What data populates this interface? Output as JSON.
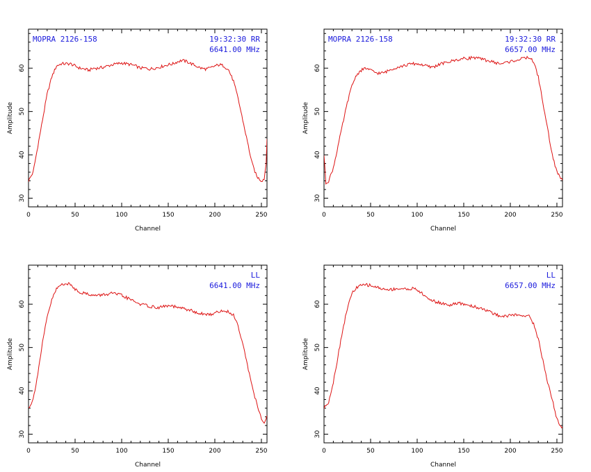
{
  "line_color": "#dd1111",
  "annotation_color": "#1a1adc",
  "chart_data": [
    {
      "type": "line",
      "position": "top-left",
      "xlabel": "Channel",
      "ylabel": "Amplitude",
      "xlim": [
        0,
        256
      ],
      "ylim": [
        28,
        69
      ],
      "xticks": [
        0,
        50,
        100,
        150,
        200,
        250
      ],
      "yticks": [
        30,
        40,
        50,
        60
      ],
      "source": "MOPRA 2126-158",
      "time_pol": "19:32:30 RR",
      "freq": "6641.00 MHz",
      "series": [
        {
          "x": [
            0,
            5,
            10,
            15,
            20,
            25,
            30,
            35,
            40,
            45,
            50,
            55,
            60,
            65,
            70,
            75,
            80,
            85,
            90,
            95,
            100,
            105,
            110,
            115,
            120,
            125,
            130,
            135,
            140,
            145,
            150,
            155,
            160,
            165,
            170,
            175,
            180,
            185,
            190,
            195,
            200,
            205,
            210,
            215,
            220,
            225,
            230,
            235,
            240,
            245,
            250,
            253,
            255,
            256
          ],
          "y": [
            34,
            36,
            42,
            48,
            54,
            58,
            60.5,
            61,
            61,
            61,
            60.5,
            60,
            59.8,
            59.5,
            60,
            60,
            60.2,
            60.5,
            60.8,
            61,
            61.2,
            61,
            60.8,
            60.5,
            60,
            60,
            59.8,
            60,
            60.2,
            60.5,
            60.8,
            61,
            61.5,
            61.8,
            61.5,
            61,
            60.5,
            60,
            59.8,
            60,
            60.5,
            60.8,
            60.5,
            59.5,
            57,
            53,
            48,
            43,
            38,
            35,
            34,
            34.5,
            38,
            44
          ]
        }
      ]
    },
    {
      "type": "line",
      "position": "top-right",
      "xlabel": "Channel",
      "ylabel": "Amplitude",
      "xlim": [
        0,
        256
      ],
      "ylim": [
        28,
        69
      ],
      "xticks": [
        0,
        50,
        100,
        150,
        200,
        250
      ],
      "yticks": [
        30,
        40,
        50,
        60
      ],
      "source": "MOPRA 2126-158",
      "time_pol": "19:32:30 RR",
      "freq": "6657.00 MHz",
      "series": [
        {
          "x": [
            0,
            2,
            5,
            10,
            15,
            20,
            25,
            30,
            35,
            40,
            45,
            50,
            55,
            60,
            65,
            70,
            75,
            80,
            85,
            90,
            95,
            100,
            105,
            110,
            115,
            120,
            125,
            130,
            135,
            140,
            145,
            150,
            155,
            160,
            165,
            170,
            175,
            180,
            185,
            190,
            195,
            200,
            205,
            210,
            215,
            220,
            225,
            230,
            235,
            240,
            245,
            250,
            253,
            256
          ],
          "y": [
            40,
            33.5,
            34,
            37,
            42,
            47,
            52,
            56,
            58.5,
            59.5,
            60,
            59.5,
            59,
            58.8,
            59,
            59.5,
            60,
            60.3,
            60.5,
            60.8,
            61,
            61,
            60.8,
            60.5,
            60.2,
            60.5,
            61,
            61.2,
            61.5,
            61.8,
            62,
            62.2,
            62.3,
            62.5,
            62.3,
            62,
            61.8,
            61.5,
            61.2,
            61,
            61.3,
            61.5,
            61.8,
            62,
            62.3,
            62.5,
            61.5,
            58,
            52,
            46,
            40,
            36,
            35,
            34
          ]
        }
      ]
    },
    {
      "type": "line",
      "position": "bottom-left",
      "xlabel": "Channel",
      "ylabel": "Amplitude",
      "xlim": [
        0,
        256
      ],
      "ylim": [
        28,
        69
      ],
      "xticks": [
        0,
        50,
        100,
        150,
        200,
        250
      ],
      "yticks": [
        30,
        40,
        50,
        60
      ],
      "pol": "LL",
      "freq": "6641.00 MHz",
      "series": [
        {
          "x": [
            0,
            5,
            10,
            15,
            20,
            25,
            30,
            35,
            40,
            45,
            50,
            55,
            60,
            65,
            70,
            75,
            80,
            85,
            90,
            95,
            100,
            105,
            110,
            115,
            120,
            125,
            130,
            135,
            140,
            145,
            150,
            155,
            160,
            165,
            170,
            175,
            180,
            185,
            190,
            195,
            200,
            205,
            210,
            215,
            220,
            225,
            230,
            235,
            240,
            245,
            250,
            253,
            256
          ],
          "y": [
            36,
            38,
            44,
            51,
            57,
            61,
            63.5,
            64.5,
            64.8,
            64.5,
            63.5,
            62.8,
            62.5,
            62.3,
            62,
            62,
            62.2,
            62.3,
            62.5,
            62.3,
            62,
            61.5,
            61,
            60.5,
            60,
            59.8,
            59.5,
            59.3,
            59.2,
            59.5,
            59.6,
            59.5,
            59.2,
            59,
            58.8,
            58.5,
            58,
            57.8,
            57.6,
            57.6,
            58,
            58.3,
            58.5,
            58.2,
            57.5,
            55,
            51,
            46,
            41,
            37,
            33.5,
            32.5,
            34
          ]
        }
      ]
    },
    {
      "type": "line",
      "position": "bottom-right",
      "xlabel": "Channel",
      "ylabel": "Amplitude",
      "xlim": [
        0,
        256
      ],
      "ylim": [
        28,
        69
      ],
      "xticks": [
        0,
        50,
        100,
        150,
        200,
        250
      ],
      "yticks": [
        30,
        40,
        50,
        60
      ],
      "pol": "LL",
      "freq": "6657.00 MHz",
      "series": [
        {
          "x": [
            0,
            5,
            10,
            15,
            20,
            25,
            30,
            35,
            40,
            45,
            50,
            55,
            60,
            65,
            70,
            75,
            80,
            85,
            90,
            95,
            100,
            105,
            110,
            115,
            120,
            125,
            130,
            135,
            140,
            145,
            150,
            155,
            160,
            165,
            170,
            175,
            180,
            185,
            190,
            195,
            200,
            205,
            210,
            215,
            220,
            225,
            230,
            235,
            240,
            245,
            250,
            253,
            256
          ],
          "y": [
            36,
            37.5,
            42,
            48,
            54,
            59,
            62.5,
            63.8,
            64.3,
            64.5,
            64.3,
            64,
            63.7,
            63.4,
            63.3,
            63.5,
            63.6,
            63.5,
            63.5,
            63.6,
            63.3,
            62.5,
            61.5,
            61,
            60.5,
            60.3,
            60,
            59.8,
            60,
            60.2,
            60,
            59.8,
            59.5,
            59.2,
            59,
            58.5,
            58,
            57.5,
            57.3,
            57.2,
            57.5,
            57.5,
            57.4,
            57.5,
            57.2,
            55.5,
            52,
            47,
            42,
            38,
            33.5,
            32,
            31.5
          ]
        }
      ]
    }
  ]
}
